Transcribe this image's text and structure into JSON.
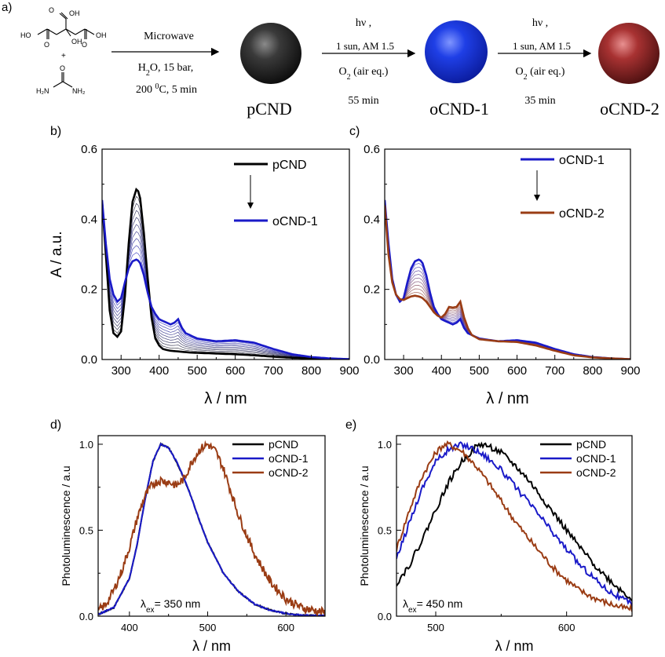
{
  "scheme": {
    "panel_label": "a)",
    "step1": {
      "line1": "Microwave",
      "line2_pre": "H",
      "line2_sub": "2",
      "line2_post": "O, 15 bar,",
      "line3_pre": "200 ",
      "line3_sup": "0",
      "line3_post": "C, 5 min"
    },
    "step2": {
      "line1": "hν ,",
      "line2": "1 sun, AM 1.5",
      "line3_pre": "O",
      "line3_sub": "2",
      "line3_post": " (air eq.)",
      "line4": "55 min"
    },
    "step3": {
      "line1": "hν ,",
      "line2": "1 sun, AM 1.5",
      "line3_pre": "O",
      "line3_sub": "2",
      "line3_post": " (air eq.)",
      "line4": "35 min"
    },
    "products": [
      "pCND",
      "oCND-1",
      "oCND-2"
    ],
    "sphere_colors": [
      "#3a3a3a",
      "#1f3fe6",
      "#a83232"
    ],
    "citric_atoms": {
      "oh": "OH",
      "ho": "HO",
      "o": "O"
    },
    "urea_atoms": {
      "o": "O",
      "h2n": "H₂N",
      "nh2": "NH₂"
    },
    "plus": "+"
  },
  "chart_data": [
    {
      "id": "b",
      "panel_label": "b)",
      "type": "line",
      "ylabel": "A / a.u.",
      "xlabel": "λ / nm",
      "xlim": [
        250,
        900
      ],
      "ylim": [
        0,
        0.6
      ],
      "xticks": [
        "300",
        "400",
        "500",
        "600",
        "700",
        "800",
        "900"
      ],
      "yticks": [
        "0.0",
        "0.2",
        "0.4",
        "0.6"
      ],
      "legend": [
        "pCND",
        "oCND-1"
      ],
      "legend_placement": "top-right",
      "colors": {
        "start": "#000000",
        "end": "#1a1ac8",
        "mid": "#9090c8"
      },
      "series": [
        {
          "name": "pCND",
          "x": [
            250,
            260,
            270,
            280,
            290,
            300,
            310,
            320,
            330,
            340,
            345,
            350,
            360,
            370,
            380,
            390,
            400,
            410,
            420,
            430,
            440,
            450,
            460,
            470,
            480,
            500,
            550,
            600,
            650,
            700,
            750,
            800,
            850,
            900
          ],
          "y": [
            0.45,
            0.3,
            0.14,
            0.075,
            0.065,
            0.08,
            0.18,
            0.33,
            0.45,
            0.485,
            0.48,
            0.46,
            0.36,
            0.23,
            0.12,
            0.06,
            0.04,
            0.03,
            0.027,
            0.025,
            0.024,
            0.023,
            0.022,
            0.021,
            0.02,
            0.019,
            0.017,
            0.015,
            0.012,
            0.008,
            0.005,
            0.003,
            0.002,
            0.001
          ]
        },
        {
          "name": "oCND-1",
          "x": [
            250,
            260,
            270,
            280,
            290,
            300,
            310,
            320,
            330,
            340,
            345,
            350,
            360,
            370,
            380,
            390,
            400,
            410,
            420,
            430,
            440,
            450,
            460,
            470,
            480,
            500,
            550,
            600,
            650,
            700,
            750,
            800,
            850,
            900
          ],
          "y": [
            0.455,
            0.33,
            0.23,
            0.185,
            0.165,
            0.175,
            0.22,
            0.26,
            0.28,
            0.285,
            0.282,
            0.275,
            0.24,
            0.19,
            0.15,
            0.13,
            0.115,
            0.11,
            0.105,
            0.1,
            0.105,
            0.115,
            0.09,
            0.075,
            0.07,
            0.06,
            0.052,
            0.055,
            0.048,
            0.03,
            0.015,
            0.007,
            0.003,
            0.001
          ]
        }
      ]
    },
    {
      "id": "c",
      "panel_label": "c)",
      "type": "line",
      "xlabel": "λ / nm",
      "xlim": [
        250,
        900
      ],
      "ylim": [
        0,
        0.6
      ],
      "xticks": [
        "300",
        "400",
        "500",
        "600",
        "700",
        "800",
        "900"
      ],
      "yticks": [
        "0.0",
        "0.2",
        "0.4",
        "0.6"
      ],
      "legend": [
        "oCND-1",
        "oCND-2"
      ],
      "legend_placement": "top-right",
      "colors": {
        "start": "#1a1ac8",
        "end": "#9a3c14",
        "mid": "#c8a090"
      },
      "series": [
        {
          "name": "oCND-1",
          "x": [
            250,
            260,
            270,
            280,
            290,
            300,
            310,
            320,
            330,
            340,
            345,
            350,
            360,
            370,
            380,
            390,
            400,
            410,
            420,
            430,
            440,
            450,
            460,
            470,
            480,
            500,
            550,
            600,
            650,
            700,
            750,
            800,
            850,
            900
          ],
          "y": [
            0.455,
            0.33,
            0.23,
            0.185,
            0.165,
            0.175,
            0.22,
            0.26,
            0.28,
            0.285,
            0.282,
            0.275,
            0.24,
            0.19,
            0.15,
            0.13,
            0.115,
            0.11,
            0.105,
            0.1,
            0.105,
            0.115,
            0.09,
            0.075,
            0.07,
            0.06,
            0.052,
            0.055,
            0.048,
            0.03,
            0.015,
            0.007,
            0.003,
            0.001
          ]
        },
        {
          "name": "oCND-2",
          "x": [
            250,
            260,
            270,
            280,
            290,
            300,
            310,
            320,
            330,
            340,
            345,
            350,
            360,
            370,
            380,
            390,
            400,
            410,
            420,
            430,
            440,
            450,
            460,
            470,
            480,
            500,
            550,
            600,
            650,
            700,
            750,
            800,
            850,
            900
          ],
          "y": [
            0.44,
            0.3,
            0.22,
            0.185,
            0.172,
            0.17,
            0.175,
            0.18,
            0.182,
            0.18,
            0.178,
            0.175,
            0.165,
            0.15,
            0.135,
            0.125,
            0.12,
            0.13,
            0.15,
            0.148,
            0.15,
            0.165,
            0.12,
            0.09,
            0.07,
            0.058,
            0.052,
            0.05,
            0.04,
            0.025,
            0.012,
            0.006,
            0.003,
            0.001
          ]
        }
      ]
    },
    {
      "id": "d",
      "panel_label": "d)",
      "type": "line",
      "ylabel": "Photoluminescence / a.u",
      "xlabel": "λ / nm",
      "xlim": [
        360,
        650
      ],
      "ylim": [
        0,
        1.05
      ],
      "xticks": [
        "400",
        "500",
        "600"
      ],
      "yticks": [
        "0.0",
        "0.5",
        "1.0"
      ],
      "legend": [
        "pCND",
        "oCND-1",
        "oCND-2"
      ],
      "legend_placement": "top-right",
      "annotation": {
        "pre": "λ",
        "sub": "ex",
        "post": "= 350 nm"
      },
      "series": [
        {
          "name": "pCND",
          "color": "#000000",
          "x": [
            360,
            380,
            400,
            410,
            420,
            430,
            440,
            450,
            460,
            470,
            480,
            490,
            500,
            520,
            540,
            560,
            580,
            600,
            620,
            650
          ],
          "y": [
            0.01,
            0.05,
            0.22,
            0.42,
            0.68,
            0.9,
            1.0,
            0.98,
            0.9,
            0.8,
            0.68,
            0.55,
            0.43,
            0.25,
            0.14,
            0.07,
            0.035,
            0.015,
            0.006,
            0.002
          ]
        },
        {
          "name": "oCND-1",
          "color": "#1a1ac8",
          "x": [
            360,
            380,
            400,
            410,
            420,
            430,
            440,
            450,
            460,
            470,
            480,
            490,
            500,
            520,
            540,
            560,
            580,
            600,
            620,
            650
          ],
          "y": [
            0.01,
            0.05,
            0.22,
            0.42,
            0.68,
            0.9,
            1.0,
            0.98,
            0.9,
            0.8,
            0.68,
            0.55,
            0.43,
            0.25,
            0.14,
            0.07,
            0.035,
            0.015,
            0.006,
            0.002
          ]
        },
        {
          "name": "oCND-2",
          "color": "#9a3c14",
          "x": [
            360,
            370,
            380,
            390,
            400,
            410,
            420,
            430,
            440,
            450,
            460,
            470,
            480,
            490,
            500,
            510,
            520,
            530,
            540,
            560,
            580,
            600,
            620,
            650
          ],
          "y": [
            0.03,
            0.07,
            0.15,
            0.26,
            0.4,
            0.57,
            0.7,
            0.77,
            0.79,
            0.78,
            0.76,
            0.8,
            0.9,
            0.97,
            1.0,
            0.96,
            0.86,
            0.72,
            0.58,
            0.36,
            0.2,
            0.1,
            0.05,
            0.02
          ]
        }
      ]
    },
    {
      "id": "e",
      "panel_label": "e)",
      "type": "line",
      "ylabel": "Photoluminescence / a.u",
      "xlabel": "λ / nm",
      "xlim": [
        470,
        650
      ],
      "ylim": [
        0,
        1.05
      ],
      "xticks": [
        "500",
        "600"
      ],
      "yticks": [
        "0.0",
        "0.5",
        "1.0"
      ],
      "legend": [
        "pCND",
        "oCND-1",
        "oCND-2"
      ],
      "legend_placement": "top-right",
      "annotation": {
        "pre": "λ",
        "sub": "ex",
        "post": "= 450 nm"
      },
      "series": [
        {
          "name": "pCND",
          "color": "#000000",
          "x": [
            470,
            480,
            490,
            500,
            510,
            520,
            530,
            535,
            540,
            550,
            560,
            570,
            580,
            590,
            600,
            610,
            620,
            630,
            640,
            650
          ],
          "y": [
            0.19,
            0.3,
            0.45,
            0.62,
            0.78,
            0.9,
            0.98,
            1.0,
            0.99,
            0.95,
            0.88,
            0.8,
            0.7,
            0.6,
            0.5,
            0.4,
            0.31,
            0.23,
            0.16,
            0.1
          ]
        },
        {
          "name": "oCND-1",
          "color": "#1a1ac8",
          "x": [
            470,
            480,
            490,
            500,
            510,
            520,
            530,
            540,
            550,
            560,
            570,
            580,
            590,
            600,
            610,
            620,
            630,
            640,
            650
          ],
          "y": [
            0.33,
            0.55,
            0.75,
            0.9,
            0.97,
            1.0,
            0.97,
            0.92,
            0.85,
            0.76,
            0.67,
            0.58,
            0.48,
            0.39,
            0.3,
            0.23,
            0.16,
            0.11,
            0.07
          ]
        },
        {
          "name": "oCND-2",
          "color": "#9a3c14",
          "x": [
            470,
            480,
            490,
            500,
            505,
            510,
            520,
            530,
            540,
            550,
            560,
            570,
            580,
            590,
            600,
            610,
            620,
            630,
            640,
            650
          ],
          "y": [
            0.39,
            0.62,
            0.82,
            0.95,
            0.99,
            1.0,
            0.96,
            0.88,
            0.78,
            0.67,
            0.56,
            0.46,
            0.37,
            0.28,
            0.21,
            0.15,
            0.11,
            0.08,
            0.055,
            0.04
          ]
        }
      ]
    }
  ]
}
